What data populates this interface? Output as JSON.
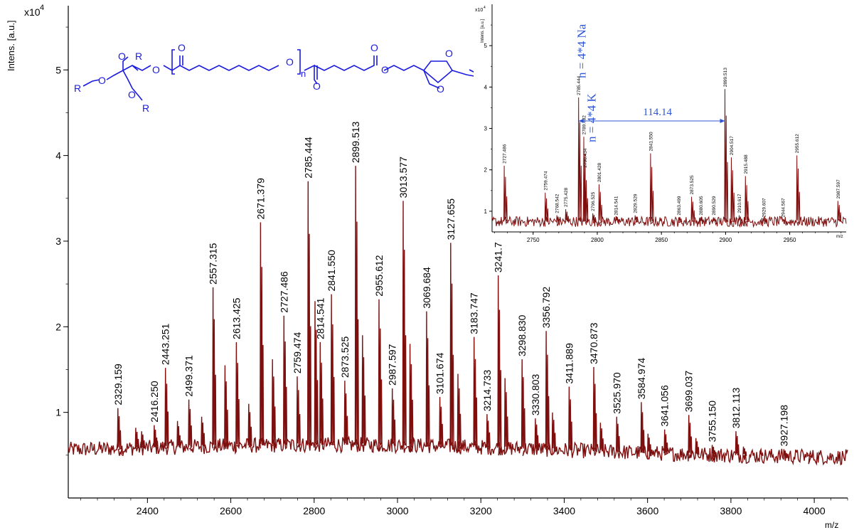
{
  "chart_data": [
    {
      "type": "line",
      "panel": "main",
      "ylabel": "Intens. [a.u.]",
      "xlabel": "m/z",
      "y_scale_label": "x10",
      "y_scale_exponent": "4",
      "xlim": [
        2210,
        4080
      ],
      "ylim": [
        0.0,
        5.75
      ],
      "x_ticks": [
        2400,
        2600,
        2800,
        3000,
        3200,
        3400,
        3600,
        3800,
        4000
      ],
      "y_ticks": [
        1,
        2,
        3,
        4,
        5
      ],
      "line_color": "#7d0f0f",
      "peaks": [
        {
          "x": 2329.159,
          "y": 1.05,
          "label": "2329.159"
        },
        {
          "x": 2416.25,
          "y": 0.85,
          "label": "2416.250"
        },
        {
          "x": 2443.251,
          "y": 1.52,
          "label": "2443.251"
        },
        {
          "x": 2499.371,
          "y": 1.15,
          "label": "2499.371"
        },
        {
          "x": 2557.315,
          "y": 2.46,
          "label": "2557.315"
        },
        {
          "x": 2613.425,
          "y": 1.82,
          "label": "2613.425"
        },
        {
          "x": 2671.379,
          "y": 3.22,
          "label": "2671.379"
        },
        {
          "x": 2727.486,
          "y": 2.13,
          "label": "2727.486"
        },
        {
          "x": 2759.474,
          "y": 1.42,
          "label": "2759.474"
        },
        {
          "x": 2785.444,
          "y": 3.7,
          "label": "2785.444"
        },
        {
          "x": 2814.541,
          "y": 1.82,
          "label": "2814.541"
        },
        {
          "x": 2841.55,
          "y": 2.38,
          "label": "2841.550"
        },
        {
          "x": 2873.525,
          "y": 1.37,
          "label": "2873.525"
        },
        {
          "x": 2899.513,
          "y": 3.88,
          "label": "2899.513"
        },
        {
          "x": 2955.612,
          "y": 2.32,
          "label": "2955.612"
        },
        {
          "x": 2987.597,
          "y": 1.28,
          "label": "2987.597"
        },
        {
          "x": 3013.577,
          "y": 3.47,
          "label": "3013.577"
        },
        {
          "x": 3069.684,
          "y": 2.18,
          "label": "3069.684"
        },
        {
          "x": 3101.674,
          "y": 1.18,
          "label": "3101.674"
        },
        {
          "x": 3127.655,
          "y": 2.98,
          "label": "3127.655"
        },
        {
          "x": 3183.747,
          "y": 1.88,
          "label": "3183.747"
        },
        {
          "x": 3214.733,
          "y": 0.98,
          "label": "3214.733"
        },
        {
          "x": 3241.72,
          "y": 2.6,
          "label": "3241.72"
        },
        {
          "x": 3298.83,
          "y": 1.62,
          "label": "3298.830"
        },
        {
          "x": 3330.803,
          "y": 0.93,
          "label": "3330.803"
        },
        {
          "x": 3356.792,
          "y": 1.95,
          "label": "3356.792"
        },
        {
          "x": 3411.889,
          "y": 1.3,
          "label": "3411.889"
        },
        {
          "x": 3470.873,
          "y": 1.53,
          "label": "3470.873"
        },
        {
          "x": 3525.97,
          "y": 0.95,
          "label": "3525.970"
        },
        {
          "x": 3584.974,
          "y": 1.12,
          "label": "3584.974"
        },
        {
          "x": 3641.056,
          "y": 0.8,
          "label": "3641.056"
        },
        {
          "x": 3699.037,
          "y": 0.97,
          "label": "3699.037"
        },
        {
          "x": 3755.15,
          "y": 0.62,
          "label": "3755.150"
        },
        {
          "x": 3812.113,
          "y": 0.78,
          "label": "3812.113"
        },
        {
          "x": 3927.198,
          "y": 0.57,
          "label": "3927.198"
        }
      ],
      "minor_peaks_x": [
        2372,
        2386,
        2472,
        2530,
        2586,
        2643,
        2700,
        2700,
        2802,
        2916,
        3030,
        3145,
        3258,
        3372,
        3487,
        3601,
        3716,
        3830,
        3870,
        3985
      ],
      "minor_peaks_y": [
        0.82,
        0.78,
        0.9,
        0.95,
        1.55,
        1.1,
        1.62,
        1.62,
        2.3,
        1.9,
        1.8,
        1.45,
        1.4,
        1.0,
        0.88,
        0.75,
        0.7,
        0.6,
        0.55,
        0.5
      ]
    },
    {
      "type": "line",
      "panel": "inset",
      "ylabel": "Intens. [a.u.]",
      "xlabel": "m/z",
      "y_scale_label": "x10",
      "y_scale_exponent": "4",
      "xlim": [
        2718,
        2994
      ],
      "ylim": [
        0.5,
        6.0
      ],
      "x_ticks": [
        2750,
        2800,
        2850,
        2900,
        2950
      ],
      "y_ticks": [
        1,
        2,
        3,
        4,
        5
      ],
      "line_color": "#7d0f0f",
      "peaks": [
        {
          "x": 2727.486,
          "y": 2.1,
          "label": "2727.486"
        },
        {
          "x": 2759.474,
          "y": 1.45,
          "label": "2759.474"
        },
        {
          "x": 2768.542,
          "y": 0.9,
          "label": "2768.542"
        },
        {
          "x": 2775.428,
          "y": 1.05,
          "label": "2775.428"
        },
        {
          "x": 2785.444,
          "y": 3.75,
          "label": "2785.444"
        },
        {
          "x": 2789.482,
          "y": 2.8,
          "label": "2789.482"
        },
        {
          "x": 2790.434,
          "y": 2.0,
          "label": "2790.434"
        },
        {
          "x": 2796.525,
          "y": 0.95,
          "label": "2796.525"
        },
        {
          "x": 2801.428,
          "y": 1.65,
          "label": "2801.428"
        },
        {
          "x": 2814.541,
          "y": 0.85,
          "label": "2814.541"
        },
        {
          "x": 2829.529,
          "y": 0.9,
          "label": "2829.529"
        },
        {
          "x": 2841.55,
          "y": 2.4,
          "label": "2841.550"
        },
        {
          "x": 2863.499,
          "y": 0.85,
          "label": "2863.499"
        },
        {
          "x": 2873.525,
          "y": 1.35,
          "label": "2873.525"
        },
        {
          "x": 2880.605,
          "y": 0.85,
          "label": "2880.605"
        },
        {
          "x": 2890.529,
          "y": 0.85,
          "label": "2890.529"
        },
        {
          "x": 2899.513,
          "y": 3.95,
          "label": "2899.513"
        },
        {
          "x": 2904.517,
          "y": 2.3,
          "label": "2904.517"
        },
        {
          "x": 2910.617,
          "y": 0.9,
          "label": "2910.617"
        },
        {
          "x": 2915.488,
          "y": 1.85,
          "label": "2915.488"
        },
        {
          "x": 2929.607,
          "y": 0.8,
          "label": "2929.607"
        },
        {
          "x": 2944.567,
          "y": 0.8,
          "label": "2944.567"
        },
        {
          "x": 2955.612,
          "y": 2.35,
          "label": "2955.612"
        },
        {
          "x": 2987.597,
          "y": 1.25,
          "label": "2987.597"
        }
      ],
      "annotations": {
        "na_label": "n = 4*4 Na",
        "k_label": "n = 4*4 K",
        "spacing_label": "114.14",
        "spacing_from_x": 2785.444,
        "spacing_to_x": 2899.513
      }
    }
  ],
  "structure": {
    "atoms": {
      "R": "R",
      "O": "O",
      "n": "n"
    }
  },
  "colors": {
    "spectrum": "#7d0f0f",
    "annotation": "#2f55d4",
    "structure": "#1a1ae0"
  }
}
